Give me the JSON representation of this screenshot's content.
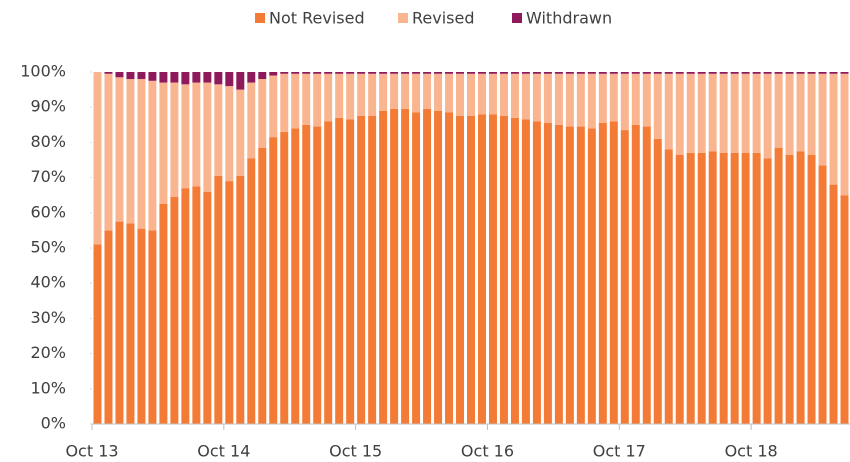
{
  "chart_data": {
    "type": "stacked_bar",
    "categories": [
      "Oct 13",
      null,
      null,
      null,
      null,
      null,
      null,
      null,
      null,
      null,
      null,
      null,
      "Oct 14",
      null,
      null,
      null,
      null,
      null,
      null,
      null,
      null,
      null,
      null,
      null,
      "Oct 15",
      null,
      null,
      null,
      null,
      null,
      null,
      null,
      null,
      null,
      null,
      null,
      "Oct 16",
      null,
      null,
      null,
      null,
      null,
      null,
      null,
      null,
      null,
      null,
      null,
      "Oct 17",
      null,
      null,
      null,
      null,
      null,
      null,
      null,
      null,
      null,
      null,
      null,
      "Oct 18",
      null,
      null,
      null,
      null,
      null,
      null,
      null,
      null
    ],
    "series": [
      {
        "name": "Not Revised",
        "color": "#f47b36",
        "values": [
          51,
          55,
          57.5,
          57,
          55.5,
          55,
          62.5,
          64.5,
          67,
          67.5,
          66,
          70.5,
          69,
          70.5,
          75.5,
          78.5,
          81.5,
          83,
          84,
          85,
          84.5,
          86,
          87,
          86.5,
          87.5,
          87.5,
          89,
          89.5,
          89.5,
          88.5,
          89.5,
          89,
          88.5,
          87.5,
          87.5,
          88,
          88,
          87.5,
          87,
          86.5,
          86,
          85.5,
          85,
          84.5,
          84.5,
          84,
          85.5,
          86,
          83.5,
          85,
          84.5,
          81,
          78,
          76.5,
          77,
          77,
          77.5,
          77,
          77,
          77,
          77,
          75.5,
          78.5,
          76.5,
          77.5,
          76.5,
          73.5,
          68,
          65
        ]
      },
      {
        "name": "Revised",
        "color": "#f9b590",
        "values": [
          49,
          44.5,
          41,
          41,
          42.5,
          42.5,
          34.5,
          32.5,
          29.5,
          29.5,
          31,
          26,
          27,
          24.5,
          21.5,
          19.5,
          17.5,
          16.5,
          15.5,
          14.5,
          15,
          13.5,
          12.5,
          13,
          12,
          12,
          10.5,
          10,
          10,
          11,
          10,
          10.5,
          11,
          12,
          12,
          11.5,
          11.5,
          12,
          12.5,
          13,
          13.5,
          14,
          14.5,
          15,
          15,
          15.5,
          14,
          13.5,
          16,
          14.5,
          15,
          18.5,
          21.5,
          23,
          22.5,
          22.5,
          22,
          22.5,
          22.5,
          22.5,
          22.5,
          24,
          21,
          23,
          22,
          23,
          26,
          31.5,
          34.5
        ]
      },
      {
        "name": "Withdrawn",
        "color": "#8e1a5c",
        "values": [
          0,
          0.5,
          1.5,
          2,
          2,
          2.5,
          3,
          3,
          3.5,
          3,
          3,
          3.5,
          4,
          5,
          3,
          2,
          1,
          0.5,
          0.5,
          0.5,
          0.5,
          0.5,
          0.5,
          0.5,
          0.5,
          0.5,
          0.5,
          0.5,
          0.5,
          0.5,
          0.5,
          0.5,
          0.5,
          0.5,
          0.5,
          0.5,
          0.5,
          0.5,
          0.5,
          0.5,
          0.5,
          0.5,
          0.5,
          0.5,
          0.5,
          0.5,
          0.5,
          0.5,
          0.5,
          0.5,
          0.5,
          0.5,
          0.5,
          0.5,
          0.5,
          0.5,
          0.5,
          0.5,
          0.5,
          0.5,
          0.5,
          0.5,
          0.5,
          0.5,
          0.5,
          0.5,
          0.5,
          0.5,
          0.5
        ]
      }
    ],
    "ylim": [
      0,
      100
    ],
    "yticks": [
      {
        "value": 0,
        "label": "0%"
      },
      {
        "value": 10,
        "label": "10%"
      },
      {
        "value": 20,
        "label": "20%"
      },
      {
        "value": 30,
        "label": "30%"
      },
      {
        "value": 40,
        "label": "40%"
      },
      {
        "value": 50,
        "label": "50%"
      },
      {
        "value": 60,
        "label": "60%"
      },
      {
        "value": 70,
        "label": "70%"
      },
      {
        "value": 80,
        "label": "80%"
      },
      {
        "value": 90,
        "label": "90%"
      },
      {
        "value": 100,
        "label": "100%"
      }
    ],
    "legend": "top"
  }
}
